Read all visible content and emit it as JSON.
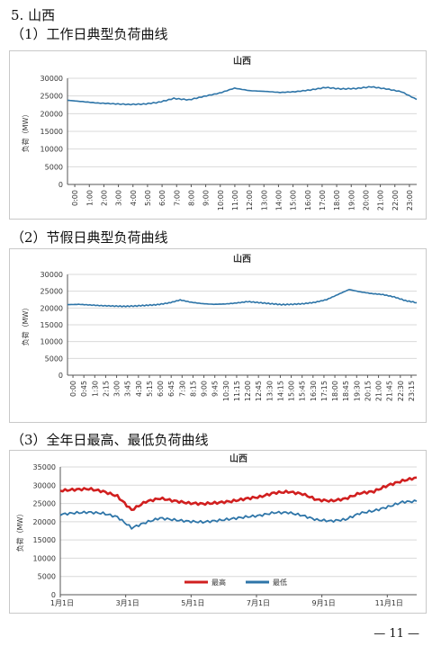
{
  "page": {
    "section_title": "5. 山西",
    "heading1": "（1）工作日典型负荷曲线",
    "heading2": "（2）节假日典型负荷曲线",
    "heading3": "（3）全年日最高、最低负荷曲线",
    "page_number": "— 11 —"
  },
  "colors": {
    "blue": "#2E75A8",
    "red": "#D11F1F",
    "grid": "#D9D9D9",
    "axis": "#555555"
  },
  "chart_data": [
    {
      "type": "line",
      "title": "山西",
      "ylabel": "负荷（MW）",
      "ylim": [
        0,
        30000
      ],
      "yticks": [
        0,
        5000,
        10000,
        15000,
        20000,
        25000,
        30000
      ],
      "x_ticklabels": [
        "0:00",
        "1:00",
        "2:00",
        "3:00",
        "4:00",
        "5:00",
        "6:00",
        "7:00",
        "8:00",
        "9:00",
        "10:00",
        "11:00",
        "12:00",
        "13:00",
        "14:00",
        "15:00",
        "16:00",
        "17:00",
        "18:00",
        "19:00",
        "20:00",
        "21:00",
        "22:00",
        "23:00"
      ],
      "grid": true,
      "series": [
        {
          "values": [
            23800,
            23400,
            23000,
            22800,
            22600,
            22700,
            23200,
            24300,
            23900,
            24900,
            25800,
            27200,
            26500,
            26300,
            26000,
            26200,
            26700,
            27400,
            27000,
            27100,
            27600,
            27000,
            26200,
            24000
          ]
        }
      ]
    },
    {
      "type": "line",
      "title": "山西",
      "ylabel": "负荷（MW）",
      "ylim": [
        0,
        30000
      ],
      "yticks": [
        0,
        5000,
        10000,
        15000,
        20000,
        25000,
        30000
      ],
      "x_ticklabels": [
        "0:00",
        "0:45",
        "1:30",
        "2:15",
        "3:00",
        "3:45",
        "4:30",
        "5:15",
        "6:00",
        "6:45",
        "7:30",
        "8:15",
        "9:00",
        "9:45",
        "10:30",
        "11:15",
        "12:00",
        "12:45",
        "13:30",
        "14:15",
        "15:00",
        "15:45",
        "16:30",
        "17:15",
        "18:00",
        "18:45",
        "19:30",
        "20:15",
        "21:00",
        "21:45",
        "22:30",
        "23:15"
      ],
      "grid": true,
      "series": [
        {
          "values": [
            21000,
            21100,
            20900,
            20700,
            20600,
            20500,
            20600,
            20800,
            21000,
            21500,
            22400,
            21700,
            21300,
            21100,
            21200,
            21500,
            21900,
            21600,
            21300,
            21000,
            21100,
            21300,
            21700,
            22500,
            24000,
            25500,
            24800,
            24300,
            24000,
            23300,
            22200,
            21600
          ]
        }
      ]
    },
    {
      "type": "line",
      "title": "山西",
      "ylabel": "负荷（MW）",
      "ylim": [
        0,
        35000
      ],
      "yticks": [
        0,
        5000,
        10000,
        15000,
        20000,
        25000,
        30000,
        35000
      ],
      "x_ticklabels": [
        "1月1日",
        "3月1日",
        "5月1日",
        "7月1日",
        "9月1日",
        "11月1日"
      ],
      "grid": true,
      "legend_position": "bottom",
      "series": [
        {
          "name": "最高",
          "values": [
            28500,
            28800,
            29000,
            28300,
            27000,
            23200,
            25500,
            26400,
            25700,
            25100,
            24900,
            25200,
            25600,
            26300,
            26800,
            27900,
            28200,
            27600,
            26000,
            25700,
            26300,
            27800,
            28300,
            30000,
            31200,
            32100
          ]
        },
        {
          "name": "最低",
          "values": [
            22000,
            22400,
            22600,
            22300,
            21300,
            18300,
            19800,
            21000,
            20500,
            20100,
            19900,
            20300,
            20800,
            21300,
            21700,
            22500,
            22500,
            21700,
            20500,
            20200,
            20600,
            22300,
            23000,
            24100,
            25400,
            25600
          ]
        }
      ]
    }
  ]
}
